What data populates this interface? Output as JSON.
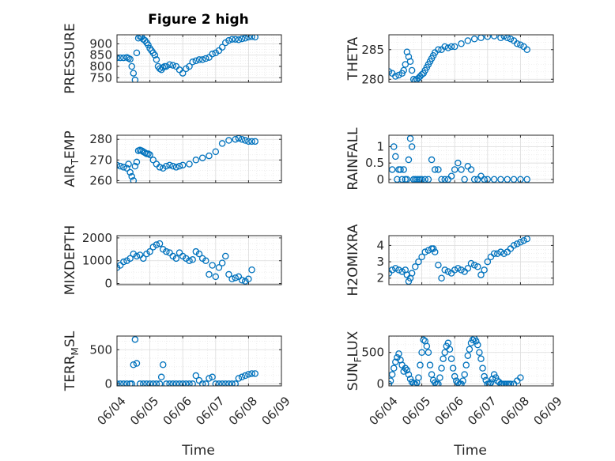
{
  "figure": {
    "title": "Figure 2 high",
    "xlabel": "Time",
    "marker_color": "#0072BD",
    "x_ticks": [
      "06/04",
      "06/05",
      "06/06",
      "06/07",
      "06/08",
      "06/09"
    ],
    "x_range": [
      "06/04",
      "06/09"
    ]
  },
  "chart_data": [
    {
      "type": "scatter",
      "ylabel": "PRESSURE",
      "ylim": [
        730,
        940
      ],
      "yticks": [
        750,
        800,
        850,
        900
      ],
      "grid": true,
      "x_days": [
        0.0,
        0.1,
        0.2,
        0.3,
        0.35,
        0.4,
        0.45,
        0.5,
        0.55,
        0.6,
        0.65,
        0.7,
        0.75,
        0.8,
        0.85,
        0.9,
        0.95,
        1.0,
        1.05,
        1.1,
        1.15,
        1.2,
        1.25,
        1.3,
        1.35,
        1.4,
        1.45,
        1.5,
        1.6,
        1.7,
        1.8,
        1.9,
        2.0,
        2.1,
        2.2,
        2.3,
        2.4,
        2.5,
        2.6,
        2.7,
        2.8,
        2.9,
        3.0,
        3.1,
        3.2,
        3.3,
        3.4,
        3.5,
        3.6,
        3.7,
        3.8,
        3.9,
        4.0,
        4.1,
        4.2
      ],
      "y": [
        838,
        838,
        838,
        840,
        836,
        832,
        800,
        770,
        740,
        860,
        925,
        932,
        930,
        920,
        915,
        905,
        895,
        880,
        870,
        860,
        850,
        830,
        800,
        790,
        785,
        795,
        800,
        800,
        808,
        805,
        800,
        785,
        770,
        790,
        800,
        820,
        825,
        830,
        830,
        835,
        840,
        855,
        860,
        870,
        885,
        905,
        915,
        920,
        920,
        918,
        922,
        925,
        930,
        932,
        930
      ]
    },
    {
      "type": "scatter",
      "ylabel": "THETA",
      "ylim": [
        279.5,
        287.5
      ],
      "yticks": [
        280,
        285
      ],
      "grid": true,
      "x_days": [
        0.0,
        0.1,
        0.2,
        0.3,
        0.4,
        0.45,
        0.5,
        0.55,
        0.6,
        0.65,
        0.7,
        0.75,
        0.8,
        0.85,
        0.9,
        0.95,
        1.0,
        1.05,
        1.1,
        1.15,
        1.2,
        1.25,
        1.3,
        1.35,
        1.4,
        1.5,
        1.6,
        1.7,
        1.8,
        1.9,
        2.0,
        2.2,
        2.4,
        2.6,
        2.8,
        3.0,
        3.2,
        3.4,
        3.5,
        3.6,
        3.7,
        3.8,
        3.9,
        4.0,
        4.1,
        4.2
      ],
      "y": [
        281.3,
        281.0,
        280.5,
        280.7,
        281.0,
        281.5,
        282.5,
        284.6,
        283.8,
        283.0,
        281.5,
        280.0,
        279.8,
        280.0,
        280.2,
        280.5,
        280.8,
        281.0,
        281.5,
        282.0,
        282.5,
        283.0,
        283.5,
        284.0,
        284.5,
        285.0,
        285.0,
        285.5,
        285.3,
        285.5,
        285.5,
        286.0,
        286.5,
        286.8,
        287.0,
        287.2,
        287.3,
        287.0,
        287.3,
        287.0,
        286.8,
        286.5,
        286.0,
        285.8,
        285.5,
        285.0
      ]
    },
    {
      "type": "scatter",
      "ylabel": "AIR_TEMP",
      "ylim": [
        259,
        282
      ],
      "yticks": [
        260,
        270,
        280
      ],
      "grid": true,
      "x_days": [
        0.0,
        0.1,
        0.2,
        0.3,
        0.35,
        0.4,
        0.45,
        0.5,
        0.55,
        0.6,
        0.65,
        0.7,
        0.75,
        0.8,
        0.85,
        0.9,
        0.95,
        1.0,
        1.1,
        1.2,
        1.3,
        1.4,
        1.5,
        1.6,
        1.7,
        1.8,
        1.9,
        2.0,
        2.2,
        2.4,
        2.6,
        2.8,
        3.0,
        3.2,
        3.4,
        3.6,
        3.7,
        3.8,
        3.9,
        4.0,
        4.1,
        4.2
      ],
      "y": [
        267.5,
        267.0,
        266.5,
        266.0,
        268.0,
        264.0,
        262.0,
        260.0,
        267.0,
        269.0,
        274.5,
        274.8,
        274.5,
        274.0,
        273.5,
        273.0,
        273.0,
        272.5,
        270.0,
        268.0,
        266.5,
        266.0,
        267.0,
        267.5,
        267.0,
        266.5,
        267.0,
        267.5,
        268.0,
        270.0,
        271.0,
        272.0,
        274.0,
        278.0,
        279.5,
        280.0,
        280.5,
        280.0,
        279.5,
        279.0,
        279.0,
        279.0
      ]
    },
    {
      "type": "scatter",
      "ylabel": "RAINFALL",
      "ylim": [
        -0.1,
        1.35
      ],
      "yticks": [
        0,
        0.5,
        1
      ],
      "grid": true,
      "x_days": [
        0.1,
        0.15,
        0.2,
        0.25,
        0.3,
        0.35,
        0.4,
        0.45,
        0.5,
        0.55,
        0.6,
        0.65,
        0.7,
        0.75,
        0.8,
        0.85,
        0.9,
        0.95,
        1.0,
        1.1,
        1.2,
        1.3,
        1.4,
        1.5,
        1.6,
        1.7,
        1.8,
        1.9,
        2.0,
        2.1,
        2.2,
        2.3,
        2.4,
        2.5,
        2.6,
        2.7,
        2.8,
        2.9,
        3.0,
        3.2,
        3.4,
        3.6,
        3.8,
        4.0,
        4.2
      ],
      "y": [
        0.3,
        1.0,
        0.7,
        0.0,
        0.3,
        0.3,
        0.0,
        0.3,
        0.0,
        0.0,
        0.6,
        1.25,
        1.0,
        0.0,
        0.0,
        0.0,
        0.0,
        0.0,
        0.0,
        0.0,
        0.0,
        0.6,
        0.3,
        0.3,
        0.0,
        0.0,
        0.0,
        0.1,
        0.3,
        0.5,
        0.3,
        0.0,
        0.4,
        0.3,
        0.0,
        0.0,
        0.1,
        0.0,
        0.0,
        0.0,
        0.0,
        0.0,
        0.0,
        0.0,
        0.0
      ]
    },
    {
      "type": "scatter",
      "ylabel": "MIXDEPTH",
      "ylim": [
        -50,
        2100
      ],
      "yticks": [
        0,
        1000,
        2000
      ],
      "grid": true,
      "x_days": [
        0.0,
        0.1,
        0.2,
        0.3,
        0.4,
        0.5,
        0.6,
        0.7,
        0.8,
        0.9,
        1.0,
        1.1,
        1.2,
        1.3,
        1.4,
        1.5,
        1.6,
        1.7,
        1.8,
        1.9,
        2.0,
        2.1,
        2.2,
        2.3,
        2.4,
        2.5,
        2.6,
        2.7,
        2.8,
        2.9,
        3.0,
        3.1,
        3.2,
        3.3,
        3.4,
        3.5,
        3.6,
        3.7,
        3.8,
        3.9,
        4.0,
        4.1
      ],
      "y": [
        700,
        800,
        950,
        1000,
        1100,
        1300,
        1200,
        1250,
        1100,
        1300,
        1400,
        1600,
        1700,
        1750,
        1500,
        1400,
        1350,
        1200,
        1100,
        1350,
        1200,
        1100,
        1000,
        1050,
        1400,
        1300,
        1100,
        1000,
        400,
        800,
        300,
        700,
        900,
        1200,
        400,
        200,
        250,
        300,
        150,
        100,
        200,
        600
      ]
    },
    {
      "type": "scatter",
      "ylabel": "H2OMIXRA",
      "ylim": [
        1.6,
        4.6
      ],
      "yticks": [
        2,
        3,
        4
      ],
      "grid": true,
      "x_days": [
        0.0,
        0.1,
        0.2,
        0.3,
        0.4,
        0.5,
        0.55,
        0.6,
        0.65,
        0.7,
        0.8,
        0.9,
        1.0,
        1.1,
        1.2,
        1.3,
        1.35,
        1.4,
        1.5,
        1.6,
        1.7,
        1.8,
        1.9,
        2.0,
        2.1,
        2.2,
        2.3,
        2.4,
        2.5,
        2.6,
        2.7,
        2.8,
        2.9,
        3.0,
        3.1,
        3.2,
        3.3,
        3.4,
        3.5,
        3.6,
        3.7,
        3.8,
        3.9,
        4.0,
        4.1,
        4.2
      ],
      "y": [
        2.3,
        2.5,
        2.6,
        2.5,
        2.4,
        2.5,
        2.2,
        1.8,
        2.0,
        2.3,
        2.7,
        3.0,
        3.3,
        3.6,
        3.7,
        3.8,
        3.8,
        3.6,
        2.8,
        2.0,
        2.5,
        2.4,
        2.3,
        2.5,
        2.6,
        2.5,
        2.4,
        2.6,
        2.9,
        2.8,
        2.7,
        2.2,
        2.5,
        3.0,
        3.3,
        3.5,
        3.5,
        3.6,
        3.5,
        3.6,
        3.8,
        4.0,
        4.1,
        4.2,
        4.3,
        4.4
      ]
    },
    {
      "type": "scatter",
      "ylabel": "TERR_MSL",
      "ylim": [
        -30,
        700
      ],
      "yticks": [
        0,
        500
      ],
      "grid": true,
      "x_days": [
        0.0,
        0.1,
        0.2,
        0.3,
        0.4,
        0.45,
        0.5,
        0.55,
        0.6,
        0.7,
        0.8,
        0.9,
        1.0,
        1.1,
        1.2,
        1.3,
        1.35,
        1.4,
        1.5,
        1.6,
        1.7,
        1.8,
        1.9,
        2.0,
        2.1,
        2.2,
        2.3,
        2.4,
        2.5,
        2.6,
        2.7,
        2.8,
        2.9,
        3.0,
        3.1,
        3.2,
        3.3,
        3.4,
        3.5,
        3.6,
        3.7,
        3.8,
        3.9,
        4.0,
        4.1,
        4.2
      ],
      "y": [
        0,
        0,
        0,
        0,
        0,
        0,
        280,
        650,
        300,
        0,
        0,
        0,
        0,
        0,
        0,
        0,
        100,
        280,
        0,
        0,
        0,
        0,
        0,
        0,
        0,
        0,
        0,
        120,
        50,
        0,
        0,
        80,
        100,
        0,
        0,
        0,
        0,
        0,
        0,
        0,
        80,
        100,
        120,
        140,
        150,
        150
      ]
    },
    {
      "type": "scatter",
      "ylabel": "SUN_FLUX",
      "ylim": [
        -30,
        760
      ],
      "yticks": [
        0,
        500
      ],
      "grid": true,
      "x_days": [
        0.0,
        0.05,
        0.1,
        0.15,
        0.2,
        0.25,
        0.3,
        0.35,
        0.4,
        0.45,
        0.5,
        0.55,
        0.6,
        0.65,
        0.7,
        0.75,
        0.8,
        0.85,
        0.9,
        0.95,
        1.0,
        1.05,
        1.1,
        1.15,
        1.2,
        1.25,
        1.3,
        1.35,
        1.4,
        1.45,
        1.5,
        1.55,
        1.6,
        1.65,
        1.7,
        1.75,
        1.8,
        1.85,
        1.9,
        1.95,
        2.0,
        2.05,
        2.1,
        2.15,
        2.2,
        2.25,
        2.3,
        2.35,
        2.4,
        2.45,
        2.5,
        2.55,
        2.6,
        2.65,
        2.7,
        2.75,
        2.8,
        2.85,
        2.9,
        2.95,
        3.0,
        3.05,
        3.1,
        3.15,
        3.2,
        3.25,
        3.3,
        3.35,
        3.4,
        3.45,
        3.5,
        3.55,
        3.6,
        3.65,
        3.7,
        3.8,
        3.9,
        4.0
      ],
      "y": [
        0,
        50,
        150,
        250,
        350,
        420,
        480,
        380,
        300,
        200,
        250,
        220,
        150,
        80,
        30,
        10,
        0,
        20,
        100,
        300,
        500,
        700,
        680,
        600,
        500,
        300,
        150,
        60,
        20,
        0,
        0,
        100,
        250,
        400,
        500,
        600,
        650,
        550,
        400,
        250,
        120,
        50,
        20,
        0,
        0,
        50,
        150,
        300,
        450,
        550,
        650,
        700,
        720,
        680,
        620,
        500,
        400,
        250,
        120,
        60,
        0,
        0,
        20,
        80,
        150,
        100,
        50,
        30,
        0,
        0,
        0,
        0,
        0,
        0,
        0,
        0,
        50,
        100
      ]
    }
  ]
}
